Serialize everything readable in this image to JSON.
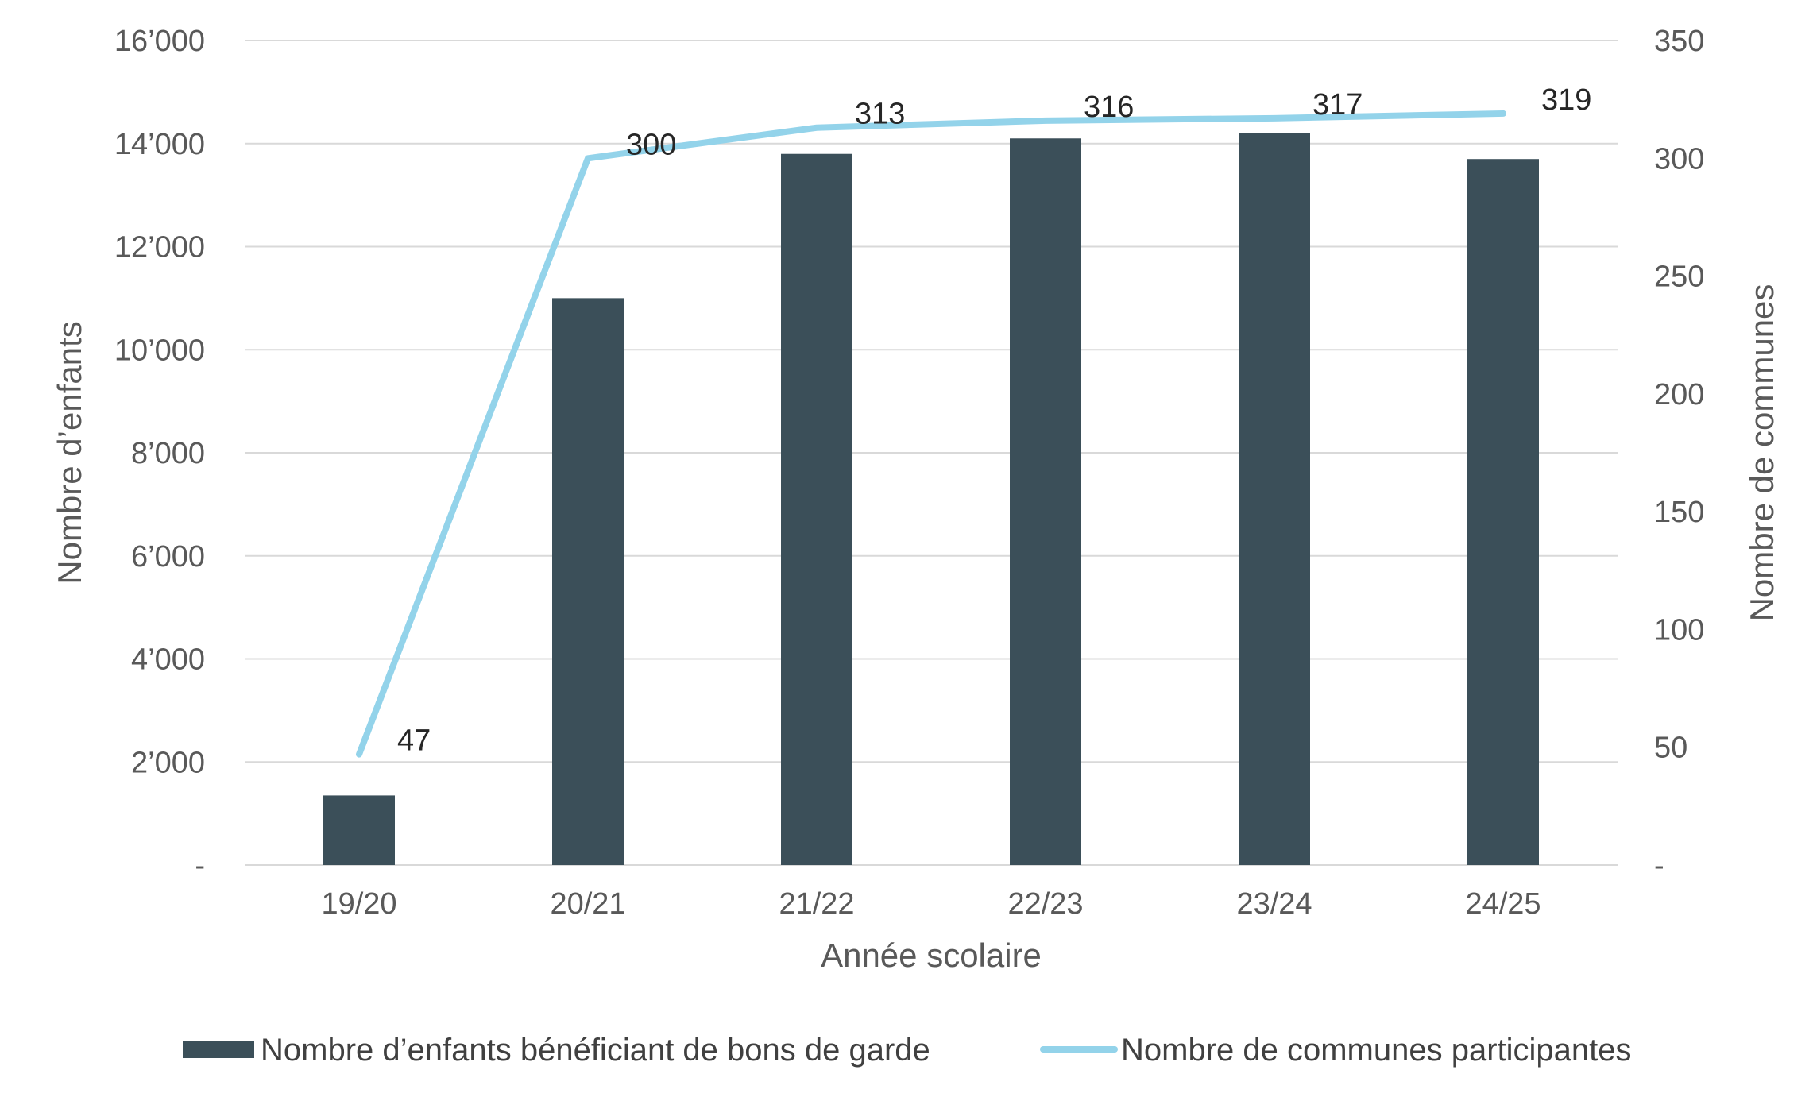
{
  "chart_data": {
    "type": "bar",
    "categories": [
      "19/20",
      "20/21",
      "21/22",
      "22/23",
      "23/24",
      "24/25"
    ],
    "series": [
      {
        "name": "Nombre d’enfants bénéficiant de bons de garde",
        "type": "bar",
        "axis": "left",
        "color": "#3b4f59",
        "values": [
          1350,
          11000,
          13800,
          14100,
          14200,
          13700
        ]
      },
      {
        "name": "Nombre de communes participantes",
        "type": "line",
        "axis": "right",
        "color": "#93d3ea",
        "values": [
          47,
          300,
          313,
          316,
          317,
          319
        ],
        "data_labels": [
          "47",
          "300",
          "313",
          "316",
          "317",
          "319"
        ]
      }
    ],
    "xlabel": "Année scolaire",
    "ylabel": "Nombre d’enfants",
    "y2label": "Nombre de communes",
    "ylim": [
      0,
      16000
    ],
    "y2lim": [
      0,
      350
    ],
    "yticks": [
      {
        "value": 0,
        "label": "-"
      },
      {
        "value": 2000,
        "label": "2’000"
      },
      {
        "value": 4000,
        "label": "4’000"
      },
      {
        "value": 6000,
        "label": "6’000"
      },
      {
        "value": 8000,
        "label": "8’000"
      },
      {
        "value": 10000,
        "label": "10’000"
      },
      {
        "value": 12000,
        "label": "12’000"
      },
      {
        "value": 14000,
        "label": "14’000"
      },
      {
        "value": 16000,
        "label": "16’000"
      }
    ],
    "y2ticks": [
      {
        "value": 0,
        "label": "-"
      },
      {
        "value": 50,
        "label": "50"
      },
      {
        "value": 100,
        "label": "100"
      },
      {
        "value": 150,
        "label": "150"
      },
      {
        "value": 200,
        "label": "200"
      },
      {
        "value": 250,
        "label": "250"
      },
      {
        "value": 300,
        "label": "300"
      },
      {
        "value": 350,
        "label": "350"
      }
    ],
    "grid": true,
    "legend_position": "bottom"
  }
}
